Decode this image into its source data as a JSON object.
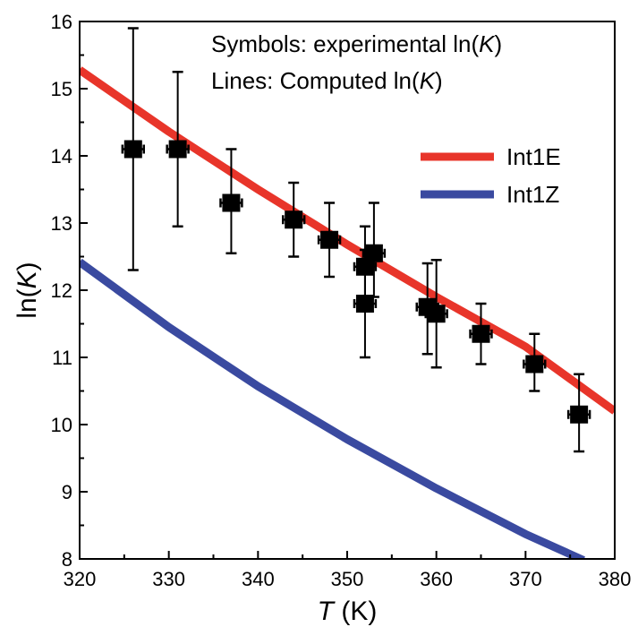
{
  "chart_data": {
    "type": "scatter",
    "xlabel": {
      "italic": "T",
      "rest": " (K)"
    },
    "ylabel": {
      "pre": "ln(",
      "italic": "K",
      "post": ")"
    },
    "xlim": [
      320,
      380
    ],
    "ylim": [
      8,
      16
    ],
    "xticks": [
      320,
      330,
      340,
      350,
      360,
      370,
      380
    ],
    "yticks": [
      8,
      9,
      10,
      11,
      12,
      13,
      14,
      15,
      16
    ],
    "annotations": [
      {
        "pre": "Symbols: experimental ln(",
        "italic": "K",
        "post": ")"
      },
      {
        "pre": "Lines: Computed ln(",
        "italic": "K",
        "post": ")"
      }
    ],
    "legend_position": "top-right",
    "points": [
      {
        "x": 326,
        "y": 14.1,
        "yerr_low": 12.3,
        "yerr_high": 15.9,
        "xerr": 1.2
      },
      {
        "x": 331,
        "y": 14.1,
        "yerr_low": 12.95,
        "yerr_high": 15.25,
        "xerr": 1.2
      },
      {
        "x": 337,
        "y": 13.3,
        "yerr_low": 12.55,
        "yerr_high": 14.1,
        "xerr": 1.2
      },
      {
        "x": 344,
        "y": 13.05,
        "yerr_low": 12.5,
        "yerr_high": 13.6,
        "xerr": 1.2
      },
      {
        "x": 348,
        "y": 12.75,
        "yerr_low": 12.2,
        "yerr_high": 13.3,
        "xerr": 1.2
      },
      {
        "x": 352,
        "y": 12.35,
        "yerr_low": 11.7,
        "yerr_high": 12.95,
        "xerr": 1.2
      },
      {
        "x": 352,
        "y": 11.8,
        "yerr_low": 11.0,
        "yerr_high": 12.6,
        "xerr": 1.2
      },
      {
        "x": 353,
        "y": 12.55,
        "yerr_low": 11.9,
        "yerr_high": 13.3,
        "xerr": 1.2
      },
      {
        "x": 359,
        "y": 11.75,
        "yerr_low": 11.05,
        "yerr_high": 12.4,
        "xerr": 1.2
      },
      {
        "x": 360,
        "y": 11.65,
        "yerr_low": 10.85,
        "yerr_high": 12.45,
        "xerr": 1.2
      },
      {
        "x": 365,
        "y": 11.35,
        "yerr_low": 10.9,
        "yerr_high": 11.8,
        "xerr": 1.2
      },
      {
        "x": 371,
        "y": 10.9,
        "yerr_low": 10.5,
        "yerr_high": 11.35,
        "xerr": 1.2
      },
      {
        "x": 376,
        "y": 10.15,
        "yerr_low": 9.6,
        "yerr_high": 10.75,
        "xerr": 1.2
      }
    ],
    "series": [
      {
        "name": "Int1E",
        "color": "#e8352a",
        "x": [
          320,
          330,
          340,
          350,
          360,
          370,
          380
        ],
        "y": [
          15.28,
          14.36,
          13.5,
          12.68,
          11.9,
          11.16,
          10.2
        ]
      },
      {
        "name": "Int1Z",
        "color": "#3a4aa0",
        "x": [
          320,
          330,
          340,
          350,
          360,
          370,
          376.5
        ],
        "y": [
          12.42,
          11.45,
          10.57,
          9.78,
          9.05,
          8.37,
          7.98
        ]
      }
    ]
  }
}
